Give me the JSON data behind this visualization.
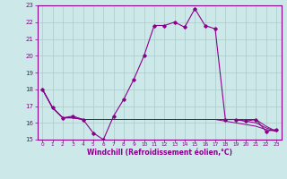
{
  "xlabel": "Windchill (Refroidissement éolien,°C)",
  "hours": [
    0,
    1,
    2,
    3,
    4,
    5,
    6,
    7,
    8,
    9,
    10,
    11,
    12,
    13,
    14,
    15,
    16,
    17,
    18,
    19,
    20,
    21,
    22,
    23
  ],
  "line1": [
    18.0,
    16.9,
    16.3,
    16.4,
    16.2,
    15.4,
    15.0,
    16.4,
    17.4,
    18.6,
    20.0,
    21.8,
    21.8,
    22.0,
    21.7,
    22.8,
    21.8,
    21.6,
    16.2,
    16.2,
    16.1,
    16.2,
    15.5,
    15.6
  ],
  "line2": [
    18.0,
    16.9,
    16.3,
    16.3,
    16.2,
    16.2,
    16.2,
    16.2,
    16.2,
    16.2,
    16.2,
    16.2,
    16.2,
    16.2,
    16.2,
    16.2,
    16.2,
    16.2,
    16.1,
    16.0,
    15.9,
    15.8,
    15.6,
    15.5
  ],
  "line3": [
    18.0,
    16.9,
    16.3,
    16.3,
    16.2,
    16.2,
    16.2,
    16.2,
    16.2,
    16.2,
    16.2,
    16.2,
    16.2,
    16.2,
    16.2,
    16.2,
    16.2,
    16.2,
    16.2,
    16.2,
    16.1,
    16.0,
    15.7,
    15.5
  ],
  "line4": [
    18.0,
    16.9,
    16.3,
    16.3,
    16.2,
    16.2,
    16.2,
    16.2,
    16.2,
    16.2,
    16.2,
    16.2,
    16.2,
    16.2,
    16.2,
    16.2,
    16.2,
    16.2,
    16.2,
    16.2,
    16.2,
    16.2,
    15.8,
    15.5
  ],
  "ylim": [
    15,
    23
  ],
  "yticks": [
    15,
    16,
    17,
    18,
    19,
    20,
    21,
    22,
    23
  ],
  "line_color": "#8B008B",
  "bg_color": "#cce8e8",
  "grid_color": "#aacccc"
}
